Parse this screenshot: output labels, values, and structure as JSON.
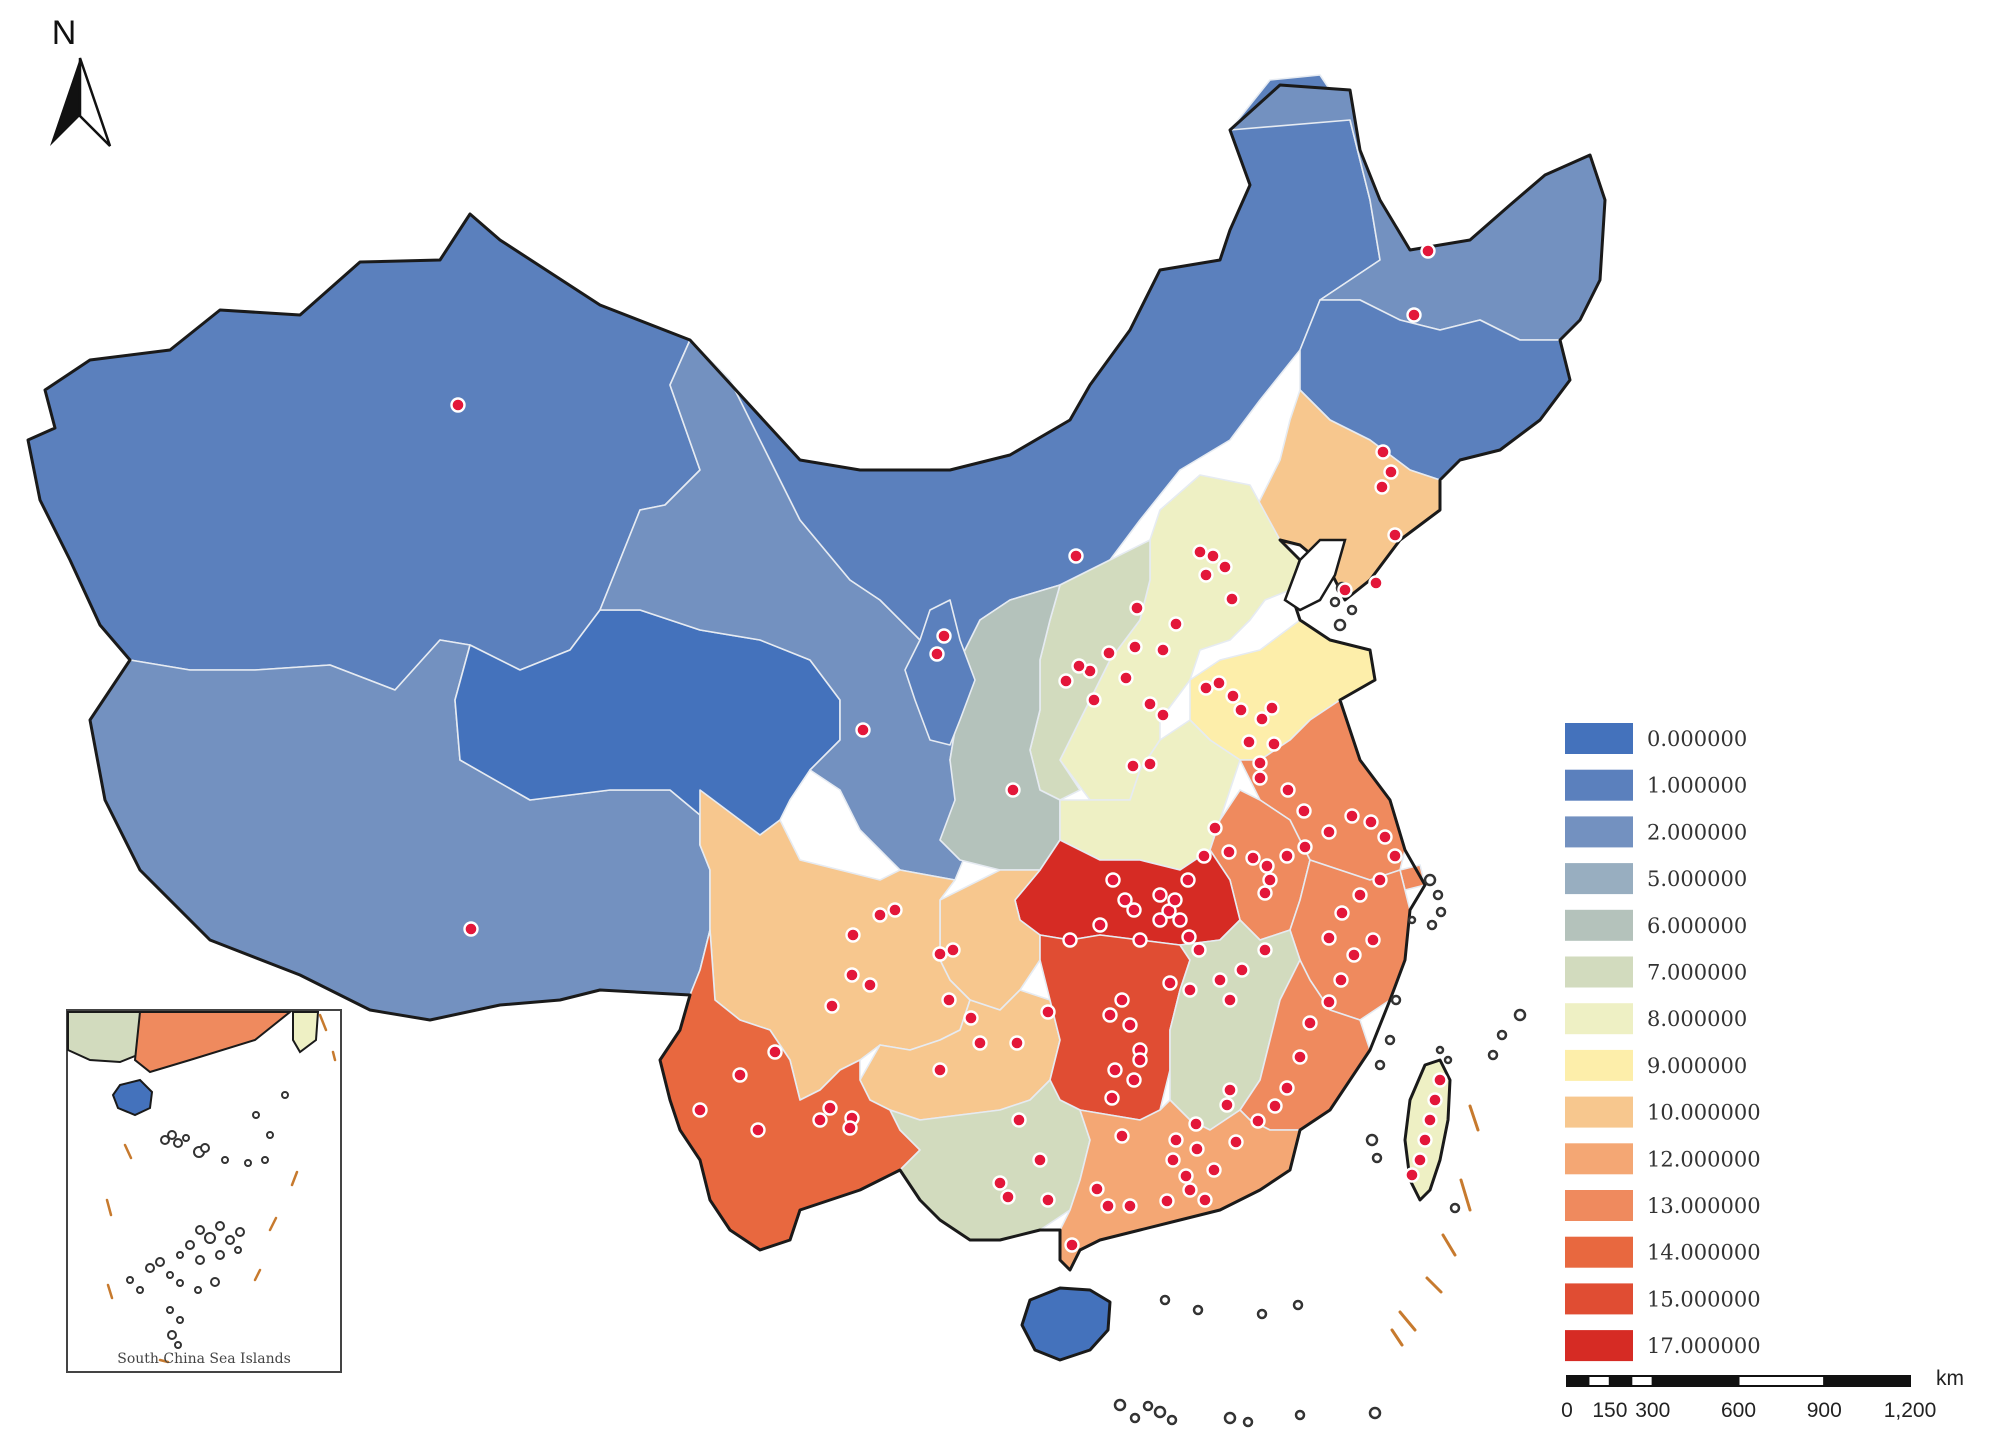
{
  "north_arrow": {
    "label": "N"
  },
  "legend": {
    "items": [
      {
        "label": "0.000000",
        "color": "#4472bc"
      },
      {
        "label": "1.000000",
        "color": "#5b80bd"
      },
      {
        "label": "2.000000",
        "color": "#7391c0"
      },
      {
        "label": "5.000000",
        "color": "#98aec0"
      },
      {
        "label": "6.000000",
        "color": "#b4c2bb"
      },
      {
        "label": "7.000000",
        "color": "#d2dbbe"
      },
      {
        "label": "8.000000",
        "color": "#eef0c4"
      },
      {
        "label": "9.000000",
        "color": "#fdeeaa"
      },
      {
        "label": "10.000000",
        "color": "#f7c78e"
      },
      {
        "label": "12.000000",
        "color": "#f4a774"
      },
      {
        "label": "13.000000",
        "color": "#ef8a5e"
      },
      {
        "label": "14.000000",
        "color": "#e8683f"
      },
      {
        "label": "15.000000",
        "color": "#e04d33"
      },
      {
        "label": "17.000000",
        "color": "#d62b24"
      }
    ]
  },
  "scale_bar": {
    "unit": "km",
    "ticks": [
      "0",
      "150",
      "300",
      "600",
      "900",
      "1,200"
    ]
  },
  "inset": {
    "title": "South China Sea Islands"
  },
  "colors": {
    "outline": "#1a1a1a",
    "city_marker": "#e3173a",
    "island_outline": "#333333",
    "dash_line": "#c77a2e"
  }
}
